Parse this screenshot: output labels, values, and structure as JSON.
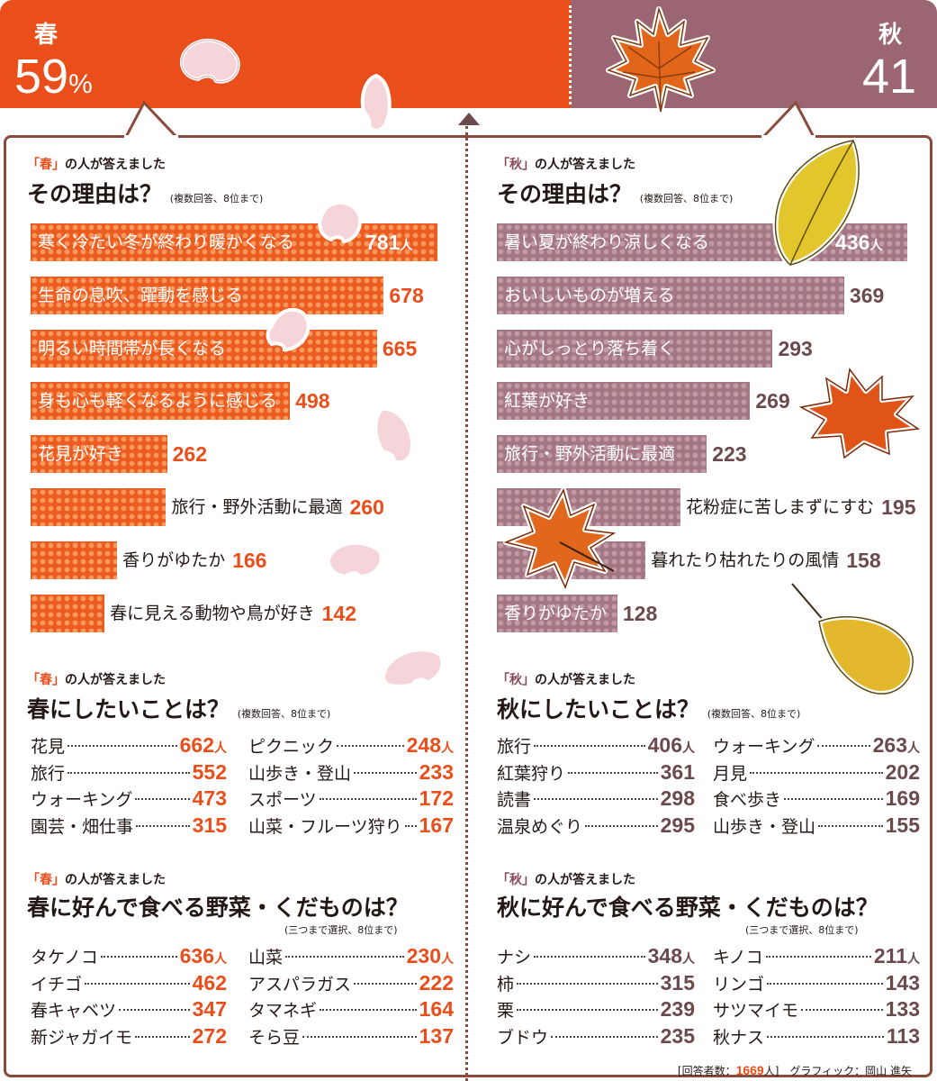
{
  "colors": {
    "spring": "#e94e1b",
    "autumn": "#9b6672",
    "border": "#8a4b3c"
  },
  "header": {
    "spring": {
      "name": "春",
      "pct": "59",
      "pct_unit": "%"
    },
    "autumn": {
      "name": "秋",
      "pct": "41"
    }
  },
  "spring_reasons": {
    "label_q": "「春」",
    "label_rest": "の人が答えました",
    "title": "その理由は？",
    "note": "(複数回答、8位まで)"
  },
  "autumn_reasons": {
    "label_q": "「秋」",
    "label_rest": "の人が答えました",
    "title": "その理由は？",
    "note": "(複数回答、8位まで)"
  },
  "spring_todo": {
    "label_q": "「春」",
    "label_rest": "の人が答えました",
    "title": "春にしたいことは？",
    "note": "(複数回答、8位まで)"
  },
  "autumn_todo": {
    "label_q": "「秋」",
    "label_rest": "の人が答えました",
    "title": "秋にしたいことは？",
    "note": "(複数回答、8位まで)"
  },
  "spring_food": {
    "label_q": "「春」",
    "label_rest": "の人が答えました",
    "title": "春に好んで食べる野菜・くだものは？",
    "note": "(三つまで選択、8位まで)"
  },
  "autumn_food": {
    "label_q": "「秋」",
    "label_rest": "の人が答えました",
    "title": "秋に好んで食べる野菜・くだものは？",
    "note": "(三つまで選択、8位まで)"
  },
  "unit": "人",
  "footer": {
    "pre": "[回答者数：",
    "count": "1669",
    "post": "人]　グラフィック：岡山 進矢"
  },
  "chart_data": [
    {
      "type": "bar",
      "title": "その理由は？",
      "categories": [
        "寒く冷たい冬が終わり暖かくなる",
        "生命の息吹、躍動を感じる",
        "明るい時間帯が長くなる",
        "身も心も軽くなるように感じる",
        "花見が好き",
        "旅行・野外活動に最適",
        "香りがゆたか",
        "春に見える動物や鳥が好き"
      ],
      "values": [
        781,
        678,
        665,
        498,
        262,
        260,
        166,
        142
      ]
    },
    {
      "type": "bar",
      "title": "その理由は？",
      "categories": [
        "暑い夏が終わり涼しくなる",
        "おいしいものが増える",
        "心がしっとり落ち着く",
        "紅葉が好き",
        "旅行・野外活動に最適",
        "花粉症に苦しまずにすむ",
        "暮れたり枯れたりの風情",
        "香りがゆたか"
      ],
      "values": [
        436,
        369,
        293,
        269,
        223,
        195,
        158,
        128
      ]
    },
    {
      "type": "table",
      "title": "春にしたいことは？",
      "categories": [
        "花見",
        "旅行",
        "ウォーキング",
        "園芸・畑仕事",
        "ピクニック",
        "山歩き・登山",
        "スポーツ",
        "山菜・フルーツ狩り"
      ],
      "values": [
        662,
        552,
        473,
        315,
        248,
        233,
        172,
        167
      ]
    },
    {
      "type": "table",
      "title": "秋にしたいことは？",
      "categories": [
        "旅行",
        "紅葉狩り",
        "読書",
        "温泉めぐり",
        "ウォーキング",
        "月見",
        "食べ歩き",
        "山歩き・登山"
      ],
      "values": [
        406,
        361,
        298,
        295,
        263,
        202,
        169,
        155
      ]
    },
    {
      "type": "table",
      "title": "春に好んで食べる野菜・くだものは？",
      "categories": [
        "タケノコ",
        "イチゴ",
        "春キャベツ",
        "新ジャガイモ",
        "山菜",
        "アスパラガス",
        "タマネギ",
        "そら豆"
      ],
      "values": [
        636,
        462,
        347,
        272,
        230,
        222,
        164,
        137
      ]
    },
    {
      "type": "table",
      "title": "秋に好んで食べる野菜・くだものは？",
      "categories": [
        "ナシ",
        "柿",
        "栗",
        "ブドウ",
        "キノコ",
        "リンゴ",
        "サツマイモ",
        "秋ナス"
      ],
      "values": [
        348,
        315,
        239,
        235,
        211,
        143,
        133,
        113
      ]
    }
  ]
}
